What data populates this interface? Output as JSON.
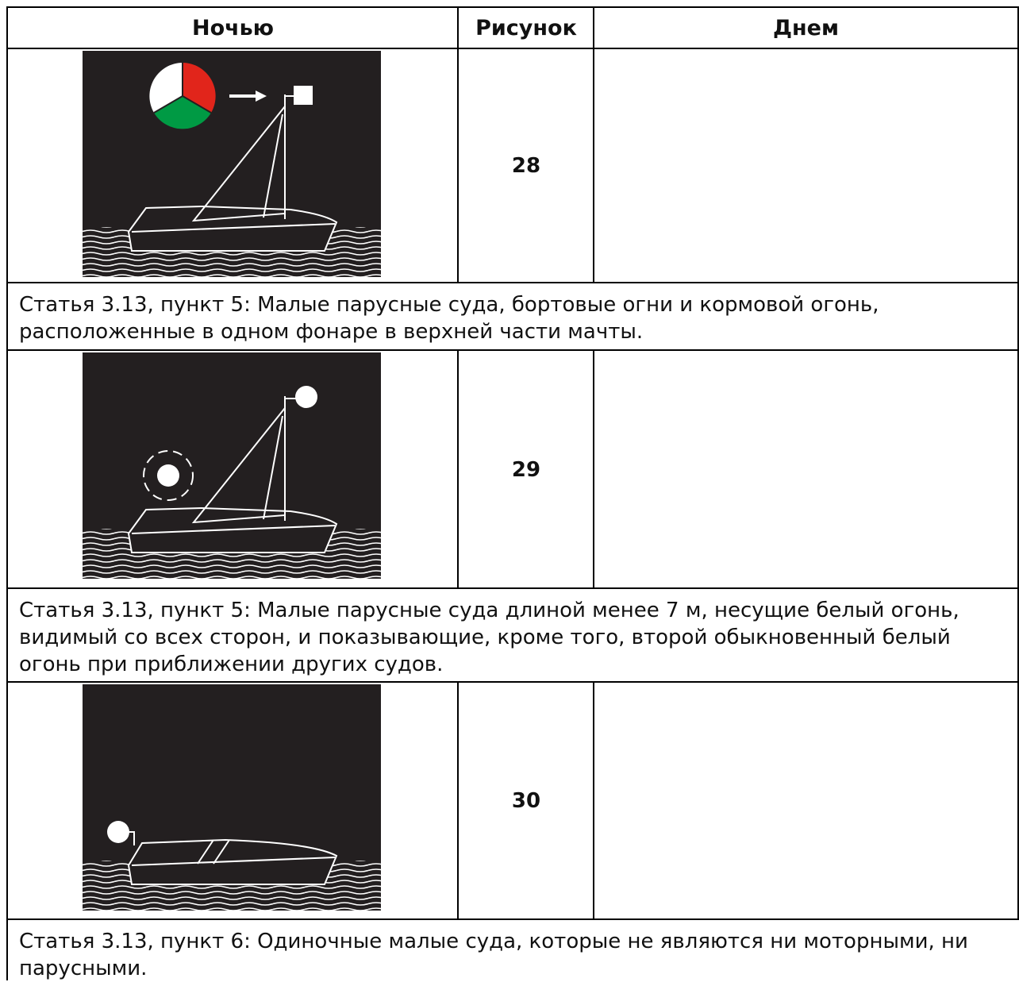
{
  "table": {
    "header": [
      "Ночью",
      "Рисунок",
      "Днем"
    ],
    "rows": [
      {
        "figure": 28,
        "caption": "Статья 3.13, пункт 5: Малые парусные суда, бортовые огни и кормовой огонь, расположенные в одном фонаре в верхней части мачты."
      },
      {
        "figure": 29,
        "caption": "Статья 3.13, пункт 5: Малые парусные суда длиной менее 7 м, несущие белый огонь, видимый со всех сторон, и показывающие, кроме того, второй обыкновенный белый огонь при приближении других судов."
      },
      {
        "figure": 30,
        "caption": "Статья 3.13, пункт 6: Одиночные малые суда, которые не являются ни моторными, ни парусными."
      }
    ]
  }
}
